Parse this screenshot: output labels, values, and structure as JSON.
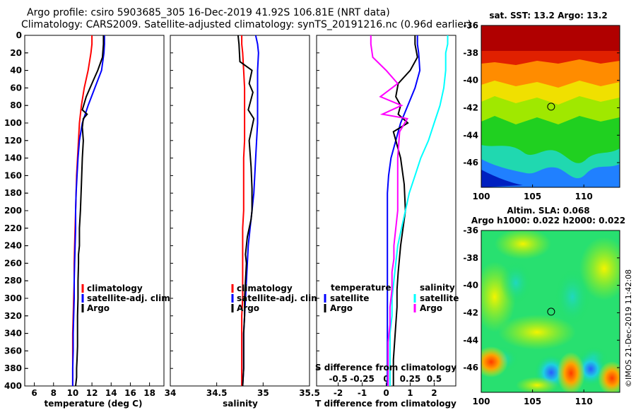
{
  "header": {
    "line1": "Argo profile: csiro 5903685_305 16-Dec-2019 41.92S 106.81E (NRT data)",
    "line2": "Climatology: CARS2009. Satellite-adjusted climatology: synTS_20191216.nc (0.96d earlier)"
  },
  "colors": {
    "climatology": "#ff0000",
    "satellite": "#0000ff",
    "argo": "#000000",
    "sal_satellite": "#00ffff",
    "sal_argo": "#ff00ff"
  },
  "chart_data": [
    {
      "type": "line",
      "id": "temperature",
      "xlabel": "temperature (deg C)",
      "ylabel": "",
      "xlim": [
        5,
        19.5
      ],
      "ylim": [
        400,
        0
      ],
      "x_ticks": [
        "6",
        "8",
        "10",
        "12",
        "14",
        "16",
        "18"
      ],
      "x_tick_values": [
        6,
        8,
        10,
        12,
        14,
        16,
        18
      ],
      "y_ticks": [
        "0",
        "20",
        "40",
        "60",
        "80",
        "100",
        "120",
        "140",
        "160",
        "180",
        "200",
        "220",
        "240",
        "260",
        "280",
        "300",
        "320",
        "340",
        "360",
        "380",
        "400"
      ],
      "y_tick_values": [
        0,
        20,
        40,
        60,
        80,
        100,
        120,
        140,
        160,
        180,
        200,
        220,
        240,
        260,
        280,
        300,
        320,
        340,
        360,
        380,
        400
      ],
      "legend": {
        "items": [
          "climatology",
          "satellite-adj. clim.",
          "Argo"
        ],
        "position": "lower-right"
      },
      "series": [
        {
          "name": "climatology",
          "color": "#ff0000",
          "x": [
            12.0,
            12.0,
            11.9,
            11.6,
            11.2,
            10.9,
            10.7,
            10.6,
            10.5,
            10.4,
            10.35,
            10.3,
            10.25,
            10.2,
            10.15,
            10.15,
            10.1,
            10.05,
            10.0,
            10.0,
            10.0,
            10.0
          ],
          "y": [
            0,
            10,
            20,
            40,
            60,
            80,
            100,
            120,
            140,
            160,
            180,
            200,
            220,
            240,
            260,
            280,
            300,
            320,
            340,
            360,
            380,
            400
          ]
        },
        {
          "name": "satellite-adj. clim.",
          "color": "#0000ff",
          "x": [
            13.3,
            13.3,
            13.25,
            13.0,
            12.3,
            11.6,
            11.0,
            10.7,
            10.55,
            10.45,
            10.35,
            10.3,
            10.3,
            10.25,
            10.2,
            10.15,
            10.15,
            10.1,
            10.05,
            10.05,
            10.0,
            10.0
          ],
          "y": [
            0,
            10,
            20,
            40,
            60,
            80,
            100,
            120,
            140,
            160,
            180,
            200,
            220,
            240,
            260,
            280,
            300,
            320,
            340,
            360,
            380,
            400
          ]
        },
        {
          "name": "Argo",
          "color": "#000000",
          "x": [
            13.2,
            13.2,
            13.1,
            12.6,
            12.2,
            11.4,
            11.0,
            11.5,
            11.1,
            11.0,
            11.1,
            11.0,
            10.9,
            10.8,
            10.7,
            10.7,
            10.6,
            10.6,
            10.55,
            10.55,
            10.5,
            10.5,
            10.5,
            10.45,
            10.4,
            10.4,
            10.35,
            10.3
          ],
          "y": [
            0,
            10,
            25,
            40,
            50,
            70,
            85,
            90,
            95,
            105,
            120,
            140,
            170,
            200,
            220,
            240,
            250,
            260,
            280,
            300,
            320,
            340,
            355,
            370,
            380,
            390,
            395,
            400
          ]
        }
      ]
    },
    {
      "type": "line",
      "id": "salinity",
      "xlabel": "salinity",
      "xlim": [
        34,
        35.5
      ],
      "ylim": [
        400,
        0
      ],
      "x_ticks": [
        "34",
        "34.5",
        "35",
        "35.5"
      ],
      "x_tick_values": [
        34,
        34.5,
        35,
        35.5
      ],
      "legend": {
        "items": [
          "climatology",
          "satellite-adj. clim.",
          "Argo"
        ],
        "position": "lower-right"
      },
      "series": [
        {
          "name": "climatology",
          "color": "#ff0000",
          "x": [
            34.77,
            34.77,
            34.78,
            34.79,
            34.8,
            34.8,
            34.8,
            34.8,
            34.79,
            34.79,
            34.79,
            34.79,
            34.78,
            34.78,
            34.78,
            34.78,
            34.78,
            34.77,
            34.77,
            34.77,
            34.77,
            34.77
          ],
          "y": [
            0,
            10,
            20,
            40,
            60,
            80,
            100,
            120,
            140,
            160,
            180,
            200,
            220,
            240,
            260,
            280,
            300,
            320,
            340,
            360,
            380,
            400
          ]
        },
        {
          "name": "satellite-adj. clim.",
          "color": "#0000ff",
          "x": [
            34.92,
            34.94,
            34.95,
            34.94,
            34.94,
            34.94,
            34.94,
            34.93,
            34.92,
            34.91,
            34.9,
            34.88,
            34.86,
            34.84,
            34.83,
            34.82,
            34.81,
            34.8,
            34.79,
            34.79,
            34.79,
            34.78
          ],
          "y": [
            0,
            10,
            20,
            40,
            60,
            80,
            100,
            120,
            140,
            160,
            180,
            200,
            220,
            240,
            260,
            280,
            300,
            320,
            340,
            360,
            380,
            400
          ]
        },
        {
          "name": "Argo",
          "color": "#000000",
          "x": [
            34.73,
            34.74,
            34.75,
            34.88,
            34.85,
            34.89,
            34.84,
            34.9,
            34.85,
            34.87,
            34.88,
            34.88,
            34.87,
            34.85,
            34.83,
            34.81,
            34.82,
            34.81,
            34.8,
            34.8,
            34.79,
            34.79,
            34.79,
            34.78
          ],
          "y": [
            0,
            10,
            30,
            40,
            55,
            65,
            85,
            95,
            120,
            150,
            175,
            200,
            210,
            220,
            230,
            250,
            260,
            280,
            300,
            320,
            340,
            360,
            380,
            400
          ]
        }
      ]
    },
    {
      "type": "line",
      "id": "differences",
      "xlabel": "T difference from climatology",
      "xlabel2": "S difference from climatology",
      "xlim": [
        -2.9,
        2.9
      ],
      "ylim": [
        400,
        0
      ],
      "x_ticks": [
        "-2",
        "-1",
        "0",
        "1",
        "2"
      ],
      "x_tick_values": [
        -2,
        -1,
        0,
        1,
        2
      ],
      "x2_ticks": [
        "-0.5",
        "-0.25",
        "0",
        "0.25",
        "0.5"
      ],
      "x2_tick_values": [
        -0.5,
        -0.25,
        0,
        0.25,
        0.5
      ],
      "legend": {
        "temperature_heading": "temperature",
        "salinity_heading": "salinity",
        "temperature_items": [
          "satellite",
          "Argo"
        ],
        "salinity_items": [
          "satellite",
          "Argo"
        ],
        "position": "lower"
      },
      "series": [
        {
          "name": "T satellite",
          "color": "#0000ff",
          "x": [
            1.3,
            1.3,
            1.35,
            1.4,
            1.2,
            0.9,
            0.6,
            0.4,
            0.2,
            0.1,
            0.05,
            0.05,
            0.05,
            0.05,
            0.05,
            0.05,
            0.05,
            0.05,
            0.05,
            0.05,
            0.05,
            0.05
          ],
          "y": [
            0,
            10,
            20,
            40,
            60,
            80,
            100,
            120,
            140,
            160,
            180,
            200,
            220,
            240,
            260,
            280,
            300,
            320,
            340,
            360,
            380,
            400
          ]
        },
        {
          "name": "T Argo",
          "color": "#000000",
          "x": [
            1.2,
            1.2,
            1.3,
            1.0,
            0.5,
            0.4,
            0.6,
            0.5,
            0.9,
            0.3,
            0.6,
            0.75,
            0.8,
            0.7,
            0.6,
            0.55,
            0.5,
            0.45,
            0.45,
            0.4,
            0.35,
            0.3,
            0.3,
            0.3
          ],
          "y": [
            0,
            10,
            25,
            40,
            55,
            70,
            80,
            90,
            100,
            110,
            140,
            170,
            200,
            220,
            240,
            255,
            270,
            290,
            310,
            330,
            350,
            370,
            385,
            400
          ]
        },
        {
          "name": "S satellite",
          "color": "#00ffff",
          "x": [
            0.64,
            0.64,
            0.62,
            0.62,
            0.6,
            0.56,
            0.5,
            0.44,
            0.36,
            0.3,
            0.24,
            0.2,
            0.16,
            0.12,
            0.1,
            0.08,
            0.06,
            0.06,
            0.04,
            0.04,
            0.04,
            0.04
          ],
          "y": [
            0,
            10,
            20,
            40,
            60,
            80,
            100,
            120,
            140,
            160,
            180,
            200,
            220,
            240,
            260,
            280,
            300,
            320,
            340,
            360,
            380,
            400
          ]
        },
        {
          "name": "S Argo",
          "color": "#ff00ff",
          "x": [
            -0.16,
            -0.16,
            -0.14,
            0.0,
            0.12,
            -0.06,
            0.16,
            -0.04,
            0.22,
            0.14,
            0.12,
            0.12,
            0.12,
            0.1,
            0.08,
            0.08,
            0.06,
            0.06,
            0.04,
            0.04,
            0.02,
            0.02,
            0.02,
            0.02
          ],
          "y": [
            0,
            10,
            25,
            40,
            55,
            70,
            80,
            90,
            95,
            110,
            140,
            170,
            200,
            220,
            240,
            255,
            270,
            290,
            310,
            330,
            350,
            370,
            385,
            400
          ]
        }
      ]
    },
    {
      "type": "heatmap",
      "id": "sst-map",
      "title": "sat. SST: 13.2 Argo: 13.2",
      "xlim": [
        100,
        113.5
      ],
      "ylim": [
        -47.8,
        -36
      ],
      "x_ticks": [
        "100",
        "105",
        "110"
      ],
      "x_tick_values": [
        100,
        105,
        110
      ],
      "y_ticks": [
        "-36",
        "-38",
        "-40",
        "-42",
        "-44",
        "-46"
      ],
      "y_tick_values": [
        -36,
        -38,
        -40,
        -42,
        -44,
        -46
      ],
      "marker": {
        "lon": 106.81,
        "lat": -41.92
      }
    },
    {
      "type": "heatmap",
      "id": "sla-map",
      "title": "Altim. SLA: 0.068",
      "subtitle": "Argo h1000: 0.022 h2000: 0.022",
      "xlim": [
        100,
        113.5
      ],
      "ylim": [
        -47.8,
        -36
      ],
      "x_ticks": [
        "100",
        "105",
        "110"
      ],
      "x_tick_values": [
        100,
        105,
        110
      ],
      "y_ticks": [
        "-36",
        "-38",
        "-40",
        "-42",
        "-44",
        "-46"
      ],
      "y_tick_values": [
        -36,
        -38,
        -40,
        -42,
        -44,
        -46
      ],
      "marker": {
        "lon": 106.81,
        "lat": -41.92
      }
    }
  ],
  "watermark": "©IMOS 21-Dec-2019 11:42:08"
}
